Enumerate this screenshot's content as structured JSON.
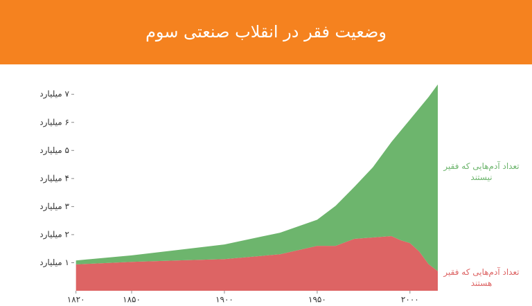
{
  "chart_data": {
    "type": "stacked-area",
    "title": "وضعیت فقر در انقلاب صنعتی سوم",
    "x": [
      1820,
      1850,
      1900,
      1930,
      1950,
      1960,
      1970,
      1980,
      1990,
      1995,
      2000,
      2005,
      2010,
      2015
    ],
    "series": [
      {
        "name": "تعداد آدم‌هایی که فقیر هستند",
        "color": "#dd6464",
        "values": [
          0.94,
          1.03,
          1.13,
          1.3,
          1.6,
          1.6,
          1.85,
          1.9,
          1.95,
          1.8,
          1.7,
          1.4,
          0.95,
          0.7
        ]
      },
      {
        "name": "تعداد آدم‌هایی که فقیر نیستند",
        "color": "#6db56d",
        "values": [
          0.14,
          0.23,
          0.52,
          0.77,
          0.93,
          1.43,
          1.85,
          2.5,
          3.35,
          3.9,
          4.4,
          5.1,
          5.95,
          6.65
        ]
      }
    ],
    "xlim": [
      1819,
      2015
    ],
    "xticks": [
      {
        "value": 1820,
        "label": "۱۸۲۰"
      },
      {
        "value": 1850,
        "label": "۱۸۵۰"
      },
      {
        "value": 1900,
        "label": "۱۹۰۰"
      },
      {
        "value": 1950,
        "label": "۱۹۵۰"
      },
      {
        "value": 2000,
        "label": "۲۰۰۰"
      }
    ],
    "ylim": [
      0,
      7.4
    ],
    "yticks": [
      {
        "value": 1,
        "label": "۱ میلیارد"
      },
      {
        "value": 2,
        "label": "۲ میلیارد"
      },
      {
        "value": 3,
        "label": "۳ میلیارد"
      },
      {
        "value": 4,
        "label": "۴ میلیارد"
      },
      {
        "value": 5,
        "label": "۵ میلیارد"
      },
      {
        "value": 6,
        "label": "۶ میلیارد"
      },
      {
        "value": 7,
        "label": "۷ میلیارد"
      }
    ],
    "grid": false
  }
}
